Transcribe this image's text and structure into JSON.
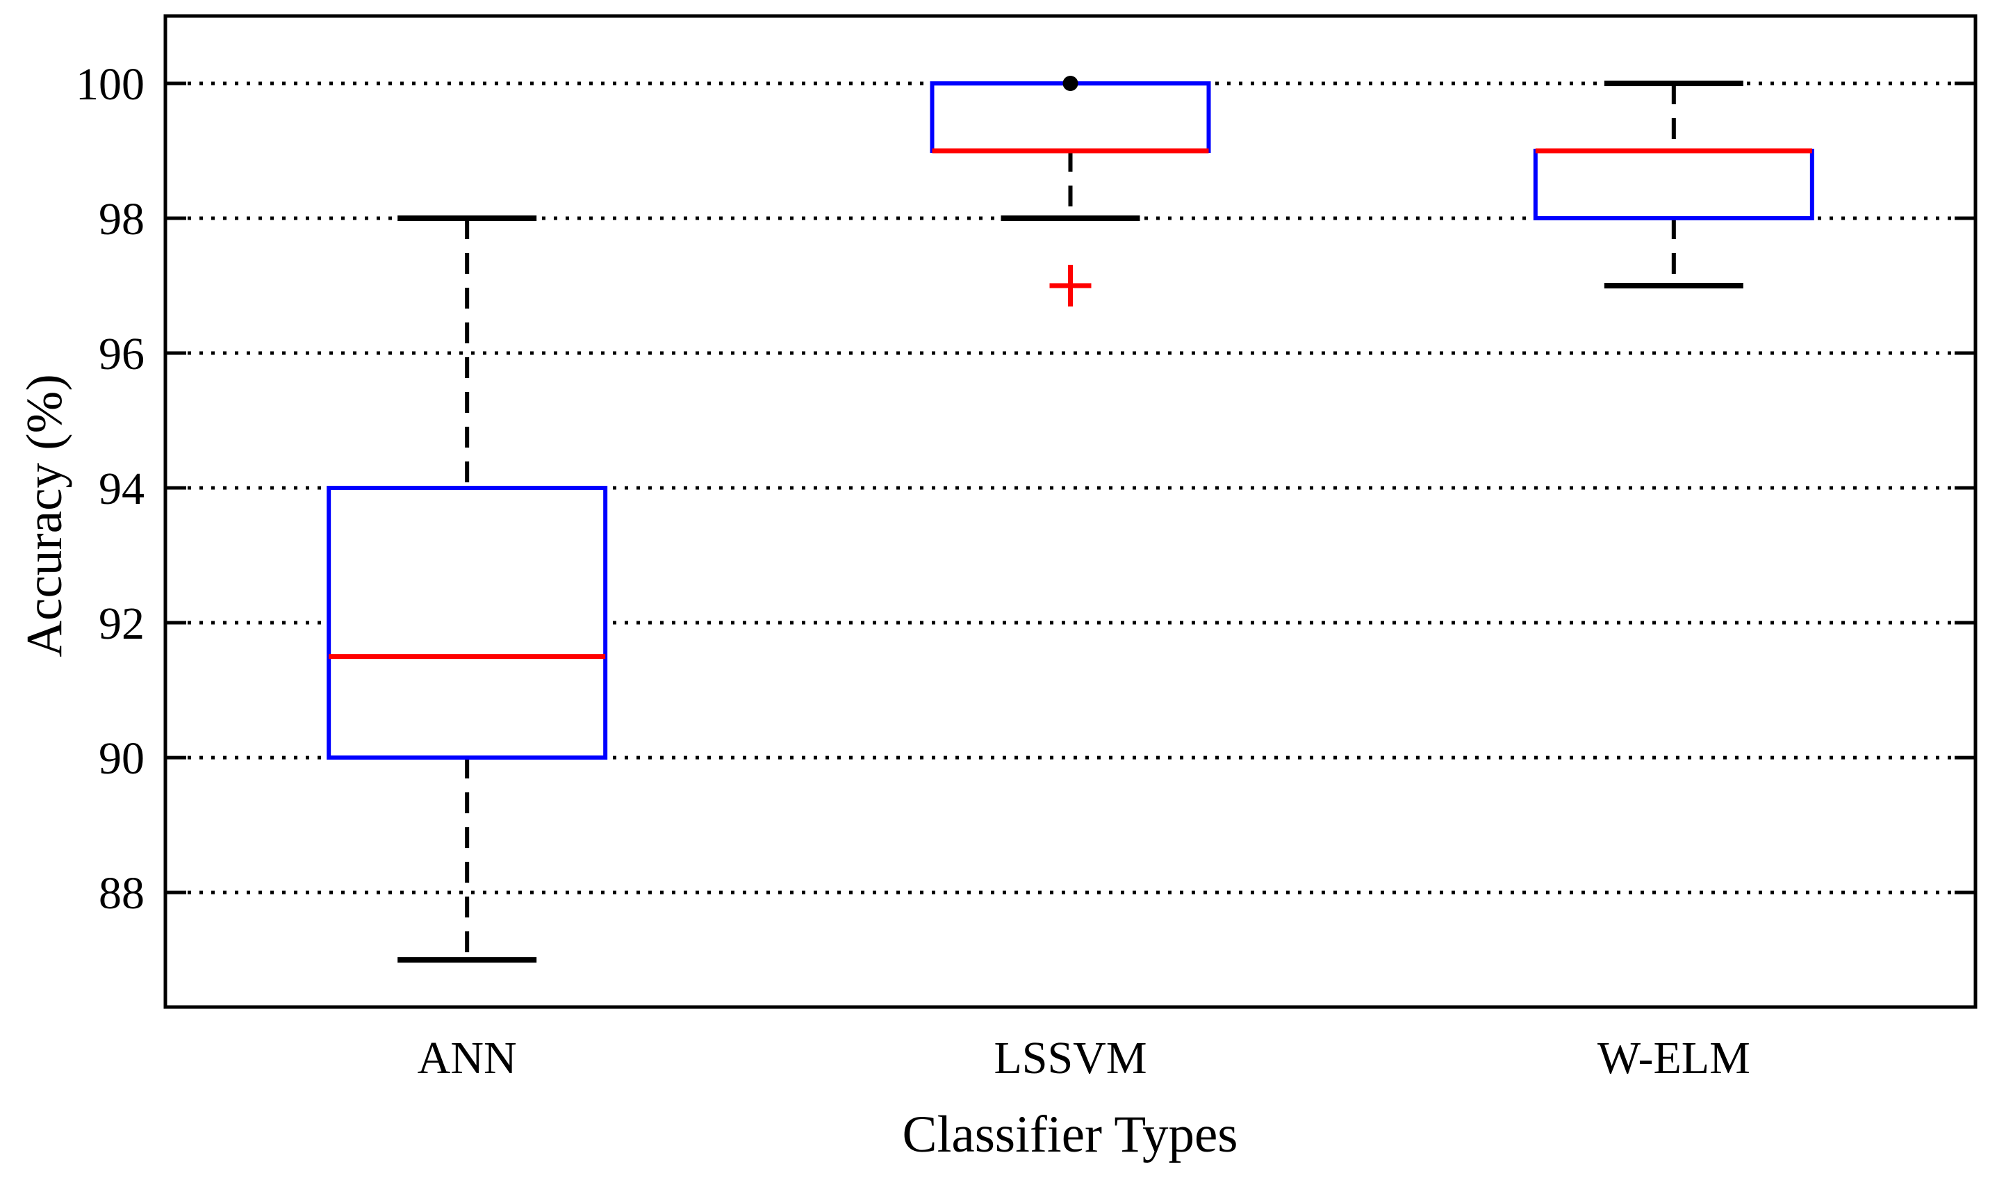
{
  "figure": {
    "xlabel": "Classifier Types",
    "ylabel": "Accuracy (%)"
  },
  "chart_data": {
    "type": "boxplot",
    "title": "",
    "xlabel": "Classifier Types",
    "ylabel": "Accuracy (%)",
    "categories": [
      "ANN",
      "LSSVM",
      "W-ELM"
    ],
    "yticks": [
      88,
      90,
      92,
      94,
      96,
      98,
      100
    ],
    "ylim": [
      86.3,
      101.0
    ],
    "grid": {
      "horizontal_dotted_at_yticks": true,
      "vertical": false
    },
    "boxes": [
      {
        "category": "ANN",
        "whisker_low": 87,
        "q1": 90,
        "median": 91.5,
        "q3": 94,
        "whisker_high": 98,
        "outliers": []
      },
      {
        "category": "LSSVM",
        "whisker_low": 98,
        "q1": 99,
        "median": 99,
        "q3": 100,
        "whisker_high": 100,
        "outliers": [
          {
            "value": 97,
            "marker": "plus",
            "color": "#ff0000"
          },
          {
            "value": 100,
            "marker": "dot",
            "color": "#000000"
          }
        ]
      },
      {
        "category": "W-ELM",
        "whisker_low": 97,
        "q1": 98,
        "median": 99,
        "q3": 99,
        "whisker_high": 100,
        "outliers": []
      }
    ],
    "colors": {
      "box_edge": "#0000ff",
      "median": "#ff0000",
      "whisker": "#000000",
      "axis": "#000000",
      "outlier_plus": "#ff0000",
      "outlier_dot": "#000000",
      "background": "#ffffff"
    }
  }
}
